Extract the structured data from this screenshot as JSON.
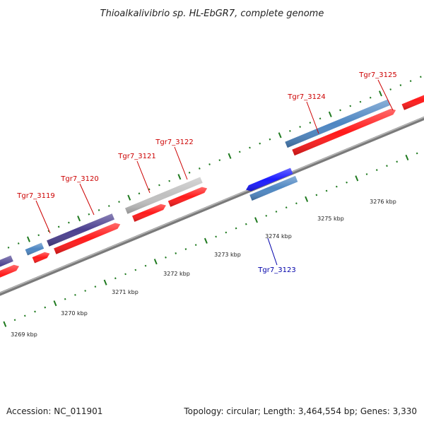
{
  "title": "Thioalkalivibrio sp. HL-EbGR7, complete genome",
  "footer": {
    "accession": "Accession: NC_011901",
    "summary": "Topology: circular; Length: 3,464,554 bp; Genes: 3,330"
  },
  "colors": {
    "forward_cds": "#ff1a1a",
    "reverse_cds_highlight": "#1a1aff",
    "gene_steelblue": "#4d86c2",
    "gene_darkslate": "#4b3f8f",
    "gene_gray": "#c0c0c0",
    "backbone": "#8c8c8c",
    "tick": "#1f7a1f",
    "label_forward": "#cc0000",
    "label_reverse": "#0000aa"
  },
  "genes": [
    {
      "name": "Tgr7_3119",
      "strand": "forward"
    },
    {
      "name": "Tgr7_3120",
      "strand": "forward"
    },
    {
      "name": "Tgr7_3121",
      "strand": "forward"
    },
    {
      "name": "Tgr7_3122",
      "strand": "forward"
    },
    {
      "name": "Tgr7_3123",
      "strand": "reverse"
    },
    {
      "name": "Tgr7_3124",
      "strand": "forward"
    },
    {
      "name": "Tgr7_3125",
      "strand": "forward"
    }
  ],
  "ticks": [
    "3269 kbp",
    "3270 kbp",
    "3271 kbp",
    "3272 kbp",
    "3273 kbp",
    "3274 kbp",
    "3275 kbp",
    "3276 kbp"
  ]
}
